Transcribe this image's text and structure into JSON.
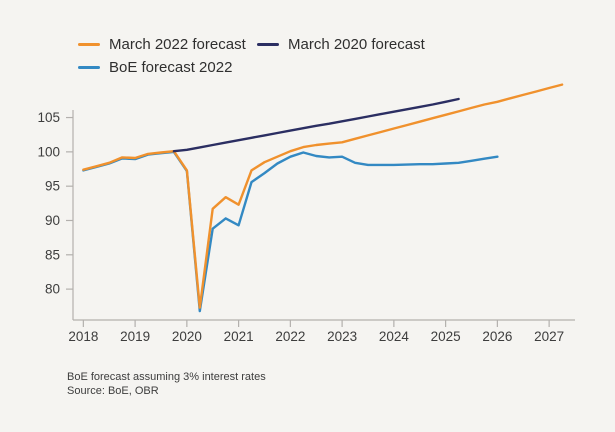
{
  "page": {
    "background": "#f5f4f1"
  },
  "footnote": "BoE forecast assuming 3% interest rates",
  "source": "Source: BoE, OBR",
  "chart_data": {
    "type": "line",
    "title": "",
    "xlabel": "",
    "ylabel": "",
    "grid": false,
    "legend_position": "top-left",
    "x_ticks": [
      2018,
      2019,
      2020,
      2021,
      2022,
      2023,
      2024,
      2025,
      2026,
      2027
    ],
    "y_ticks": [
      80,
      85,
      90,
      95,
      100,
      105
    ],
    "x_domain": [
      2017.8,
      2027.5
    ],
    "y_domain": [
      75.5,
      111.2
    ],
    "axis_color": "#b3b0ad",
    "tick_label_color": "#3d3d3d",
    "series": [
      {
        "name": "March 2022 forecast",
        "color": "#f0912d",
        "points": [
          [
            2018,
            97.4
          ],
          [
            2018.25,
            97.9
          ],
          [
            2018.5,
            98.4
          ],
          [
            2018.75,
            99.2
          ],
          [
            2019,
            99.1
          ],
          [
            2019.25,
            99.7
          ],
          [
            2019.5,
            99.9
          ],
          [
            2019.75,
            100.1
          ],
          [
            2020,
            97.3
          ],
          [
            2020.25,
            77.3
          ],
          [
            2020.5,
            91.7
          ],
          [
            2020.75,
            93.4
          ],
          [
            2021,
            92.3
          ],
          [
            2021.25,
            97.3
          ],
          [
            2021.5,
            98.5
          ],
          [
            2021.75,
            99.3
          ],
          [
            2022,
            100.1
          ],
          [
            2022.25,
            100.7
          ],
          [
            2022.5,
            101
          ],
          [
            2022.75,
            101.2
          ],
          [
            2023,
            101.4
          ],
          [
            2023.25,
            101.9
          ],
          [
            2023.5,
            102.4
          ],
          [
            2023.75,
            102.9
          ],
          [
            2024,
            103.4
          ],
          [
            2024.25,
            103.9
          ],
          [
            2024.5,
            104.4
          ],
          [
            2024.75,
            104.9
          ],
          [
            2025,
            105.4
          ],
          [
            2025.25,
            105.9
          ],
          [
            2025.5,
            106.4
          ],
          [
            2025.75,
            106.9
          ],
          [
            2026,
            107.3
          ],
          [
            2026.25,
            107.8
          ],
          [
            2026.5,
            108.3
          ],
          [
            2026.75,
            108.8
          ],
          [
            2027,
            109.3
          ],
          [
            2027.25,
            109.8
          ]
        ]
      },
      {
        "name": "March 2020 forecast",
        "color": "#2b2e62",
        "points": [
          [
            2019.75,
            100.1
          ],
          [
            2020,
            100.3
          ],
          [
            2020.25,
            100.65
          ],
          [
            2020.5,
            101
          ],
          [
            2020.75,
            101.35
          ],
          [
            2021,
            101.7
          ],
          [
            2021.25,
            102.05
          ],
          [
            2021.5,
            102.4
          ],
          [
            2021.75,
            102.75
          ],
          [
            2022,
            103.1
          ],
          [
            2022.25,
            103.45
          ],
          [
            2022.5,
            103.8
          ],
          [
            2022.75,
            104.1
          ],
          [
            2023,
            104.45
          ],
          [
            2023.25,
            104.8
          ],
          [
            2023.5,
            105.15
          ],
          [
            2023.75,
            105.5
          ],
          [
            2024,
            105.85
          ],
          [
            2024.25,
            106.2
          ],
          [
            2024.5,
            106.55
          ],
          [
            2024.75,
            106.9
          ],
          [
            2025,
            107.3
          ],
          [
            2025.25,
            107.7
          ]
        ]
      },
      {
        "name": "BoE forecast 2022",
        "color": "#3389c3",
        "points": [
          [
            2018,
            97.3
          ],
          [
            2018.25,
            97.8
          ],
          [
            2018.5,
            98.3
          ],
          [
            2018.75,
            99.05
          ],
          [
            2019,
            98.95
          ],
          [
            2019.25,
            99.6
          ],
          [
            2019.5,
            99.8
          ],
          [
            2019.75,
            100
          ],
          [
            2020,
            97.2
          ],
          [
            2020.25,
            76.8
          ],
          [
            2020.5,
            88.8
          ],
          [
            2020.75,
            90.3
          ],
          [
            2021,
            89.3
          ],
          [
            2021.25,
            95.6
          ],
          [
            2021.5,
            96.9
          ],
          [
            2021.75,
            98.3
          ],
          [
            2022,
            99.3
          ],
          [
            2022.25,
            99.9
          ],
          [
            2022.5,
            99.4
          ],
          [
            2022.75,
            99.2
          ],
          [
            2023,
            99.3
          ],
          [
            2023.25,
            98.4
          ],
          [
            2023.5,
            98.1
          ],
          [
            2023.75,
            98.1
          ],
          [
            2024,
            98.1
          ],
          [
            2024.25,
            98.15
          ],
          [
            2024.5,
            98.2
          ],
          [
            2024.75,
            98.2
          ],
          [
            2025,
            98.3
          ],
          [
            2025.25,
            98.4
          ],
          [
            2025.5,
            98.7
          ],
          [
            2025.75,
            99
          ],
          [
            2026,
            99.3
          ]
        ]
      }
    ]
  }
}
